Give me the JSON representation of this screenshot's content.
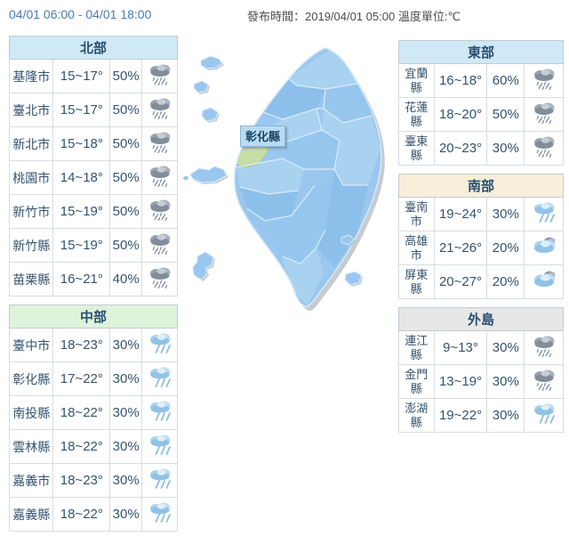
{
  "header": {
    "period": "04/01 06:00 - 04/01 18:00",
    "release": "發布時間：2019/04/01 05:00 溫度單位:℃"
  },
  "map": {
    "label": "彰化縣"
  },
  "colors": {
    "header_blue": "#cfe9f7",
    "header_green": "#ddf3da",
    "header_tan": "#f8eeda",
    "header_gray": "#e7e7e7",
    "period_text": "#4a7ab8",
    "highlight_county_green": "#c6dda6"
  },
  "regions": [
    {
      "id": "north",
      "name": "北部",
      "column": "left",
      "header_bg": "#cfe9f7",
      "rows": [
        {
          "city": "基隆市",
          "temp": "15~17°",
          "pop": "50%",
          "icon": "heavy-rain"
        },
        {
          "city": "臺北市",
          "temp": "15~17°",
          "pop": "50%",
          "icon": "heavy-rain"
        },
        {
          "city": "新北市",
          "temp": "15~18°",
          "pop": "50%",
          "icon": "heavy-rain"
        },
        {
          "city": "桃園市",
          "temp": "14~18°",
          "pop": "50%",
          "icon": "heavy-rain"
        },
        {
          "city": "新竹市",
          "temp": "15~19°",
          "pop": "50%",
          "icon": "heavy-rain"
        },
        {
          "city": "新竹縣",
          "temp": "15~19°",
          "pop": "50%",
          "icon": "heavy-rain"
        },
        {
          "city": "苗栗縣",
          "temp": "16~21°",
          "pop": "40%",
          "icon": "heavy-rain"
        }
      ]
    },
    {
      "id": "central",
      "name": "中部",
      "column": "left",
      "header_bg": "#ddf3da",
      "rows": [
        {
          "city": "臺中市",
          "temp": "18~23°",
          "pop": "30%",
          "icon": "light-rain"
        },
        {
          "city": "彰化縣",
          "temp": "17~22°",
          "pop": "30%",
          "icon": "light-rain"
        },
        {
          "city": "南投縣",
          "temp": "18~22°",
          "pop": "30%",
          "icon": "light-rain"
        },
        {
          "city": "雲林縣",
          "temp": "18~22°",
          "pop": "30%",
          "icon": "light-rain"
        },
        {
          "city": "嘉義市",
          "temp": "18~23°",
          "pop": "30%",
          "icon": "light-rain"
        },
        {
          "city": "嘉義縣",
          "temp": "18~22°",
          "pop": "30%",
          "icon": "light-rain"
        }
      ]
    },
    {
      "id": "east",
      "name": "東部",
      "column": "right",
      "header_bg": "#cfe9f7",
      "rows": [
        {
          "city": "宜蘭縣",
          "temp": "16~18°",
          "pop": "60%",
          "icon": "heavy-rain"
        },
        {
          "city": "花蓮縣",
          "temp": "18~20°",
          "pop": "50%",
          "icon": "heavy-rain"
        },
        {
          "city": "臺東縣",
          "temp": "20~23°",
          "pop": "30%",
          "icon": "heavy-rain"
        }
      ]
    },
    {
      "id": "south",
      "name": "南部",
      "column": "right",
      "header_bg": "#f8eeda",
      "rows": [
        {
          "city": "臺南市",
          "temp": "19~24°",
          "pop": "30%",
          "icon": "light-rain"
        },
        {
          "city": "高雄市",
          "temp": "21~26°",
          "pop": "20%",
          "icon": "cloudy"
        },
        {
          "city": "屏東縣",
          "temp": "20~27°",
          "pop": "20%",
          "icon": "cloudy"
        }
      ]
    },
    {
      "id": "islands",
      "name": "外島",
      "column": "right",
      "header_bg": "#e7e7e7",
      "rows": [
        {
          "city": "連江縣",
          "temp": "9~13°",
          "pop": "30%",
          "icon": "heavy-rain"
        },
        {
          "city": "金門縣",
          "temp": "13~19°",
          "pop": "30%",
          "icon": "heavy-rain"
        },
        {
          "city": "澎湖縣",
          "temp": "19~22°",
          "pop": "30%",
          "icon": "light-rain"
        }
      ]
    }
  ]
}
